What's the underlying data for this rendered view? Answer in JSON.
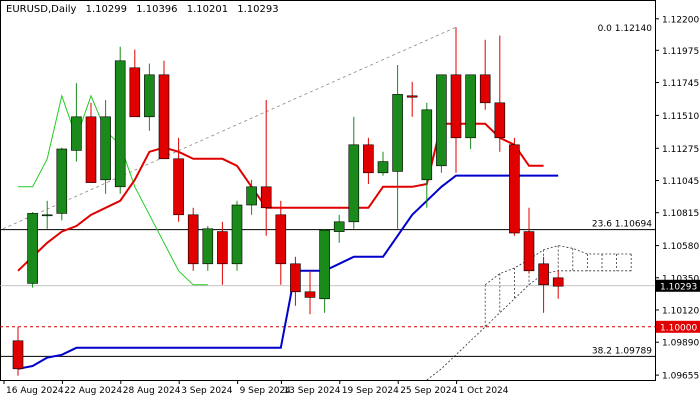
{
  "header": {
    "symbol_timeframe": "EURUSD,Daily",
    "open": "1.10299",
    "high": "1.10396",
    "low": "1.10201",
    "close": "1.10293"
  },
  "colors": {
    "bull": "#1a8a1a",
    "bear": "#e00000",
    "red_line": "#e00000",
    "blue_line": "#0000cc",
    "green_line": "#22cc22",
    "grid": "#d8d8d8",
    "level_line": "#000000",
    "dashed_level": "#cc0000",
    "cloud": "#333333",
    "current_price_bg": "#000000",
    "key_level_bg": "#e00000"
  },
  "chart_data": {
    "type": "candlestick",
    "symbol": "EURUSD",
    "timeframe": "Daily",
    "ylim": [
      1.0962,
      1.1222
    ],
    "y_ticks": [
      "1.12200",
      "1.11975",
      "1.11745",
      "1.11510",
      "1.11275",
      "1.11045",
      "1.10815",
      "1.10580",
      "1.10350",
      "1.10120",
      "1.09890",
      "1.09655"
    ],
    "x_labels": [
      "16 Aug 2024",
      "22 Aug 2024",
      "28 Aug 2024",
      "3 Sep 2024",
      "9 Sep 2024",
      "13 Sep 2024",
      "19 Sep 2024",
      "25 Sep 2024",
      "1 Oct 2024"
    ],
    "candles": [
      {
        "o": 1.099,
        "h": 1.1,
        "l": 1.0965,
        "c": 1.097
      },
      {
        "o": 1.1031,
        "h": 1.1082,
        "l": 1.1028,
        "c": 1.1081
      },
      {
        "o": 1.108,
        "h": 1.109,
        "l": 1.107,
        "c": 1.108
      },
      {
        "o": 1.1081,
        "h": 1.1128,
        "l": 1.1076,
        "c": 1.1127
      },
      {
        "o": 1.1126,
        "h": 1.1174,
        "l": 1.1118,
        "c": 1.115
      },
      {
        "o": 1.115,
        "h": 1.116,
        "l": 1.1105,
        "c": 1.1103
      },
      {
        "o": 1.1105,
        "h": 1.1162,
        "l": 1.1095,
        "c": 1.115
      },
      {
        "o": 1.11,
        "h": 1.12,
        "l": 1.1095,
        "c": 1.119
      },
      {
        "o": 1.1185,
        "h": 1.1198,
        "l": 1.115,
        "c": 1.115
      },
      {
        "o": 1.115,
        "h": 1.1188,
        "l": 1.114,
        "c": 1.118
      },
      {
        "o": 1.118,
        "h": 1.119,
        "l": 1.112,
        "c": 1.112
      },
      {
        "o": 1.112,
        "h": 1.1135,
        "l": 1.1075,
        "c": 1.108
      },
      {
        "o": 1.108,
        "h": 1.1085,
        "l": 1.104,
        "c": 1.1045
      },
      {
        "o": 1.1045,
        "h": 1.1072,
        "l": 1.104,
        "c": 1.107
      },
      {
        "o": 1.1068,
        "h": 1.1075,
        "l": 1.103,
        "c": 1.1045
      },
      {
        "o": 1.1045,
        "h": 1.109,
        "l": 1.104,
        "c": 1.1087
      },
      {
        "o": 1.1087,
        "h": 1.1105,
        "l": 1.108,
        "c": 1.11
      },
      {
        "o": 1.11,
        "h": 1.1162,
        "l": 1.1065,
        "c": 1.1085
      },
      {
        "o": 1.108,
        "h": 1.109,
        "l": 1.103,
        "c": 1.1045
      },
      {
        "o": 1.1045,
        "h": 1.105,
        "l": 1.1015,
        "c": 1.1025
      },
      {
        "o": 1.1025,
        "h": 1.104,
        "l": 1.1009,
        "c": 1.1021
      },
      {
        "o": 1.102,
        "h": 1.107,
        "l": 1.101,
        "c": 1.1069
      },
      {
        "o": 1.1068,
        "h": 1.108,
        "l": 1.106,
        "c": 1.1075
      },
      {
        "o": 1.1075,
        "h": 1.115,
        "l": 1.107,
        "c": 1.113
      },
      {
        "o": 1.113,
        "h": 1.1135,
        "l": 1.1102,
        "c": 1.111
      },
      {
        "o": 1.111,
        "h": 1.1125,
        "l": 1.1108,
        "c": 1.1118
      },
      {
        "o": 1.1111,
        "h": 1.1187,
        "l": 1.107,
        "c": 1.1166
      },
      {
        "o": 1.1165,
        "h": 1.1175,
        "l": 1.115,
        "c": 1.1164
      },
      {
        "o": 1.1105,
        "h": 1.116,
        "l": 1.1085,
        "c": 1.1155
      },
      {
        "o": 1.1115,
        "h": 1.118,
        "l": 1.111,
        "c": 1.118
      },
      {
        "o": 1.118,
        "h": 1.1214,
        "l": 1.111,
        "c": 1.1135
      },
      {
        "o": 1.1135,
        "h": 1.118,
        "l": 1.1127,
        "c": 1.118
      },
      {
        "o": 1.118,
        "h": 1.1205,
        "l": 1.1155,
        "c": 1.116
      },
      {
        "o": 1.116,
        "h": 1.1208,
        "l": 1.1125,
        "c": 1.1135
      },
      {
        "o": 1.113,
        "h": 1.1135,
        "l": 1.1065,
        "c": 1.1067
      },
      {
        "o": 1.1068,
        "h": 1.1085,
        "l": 1.1038,
        "c": 1.104
      },
      {
        "o": 1.1045,
        "h": 1.105,
        "l": 1.101,
        "c": 1.103
      },
      {
        "o": 1.1035,
        "h": 1.104,
        "l": 1.102,
        "c": 1.1029
      }
    ],
    "red_line": [
      1.104,
      1.105,
      1.106,
      1.1068,
      1.1072,
      1.108,
      1.1085,
      1.109,
      1.1105,
      1.1125,
      1.1128,
      1.1125,
      1.112,
      1.112,
      1.112,
      1.1115,
      1.11,
      1.1085,
      1.1085,
      1.1085,
      1.1085,
      1.1085,
      1.1085,
      1.1085,
      1.1085,
      1.11,
      1.11,
      1.11,
      1.1102,
      1.1145,
      1.1145,
      1.1145,
      1.1145,
      1.1135,
      1.113,
      1.1115,
      1.1115
    ],
    "blue_line": [
      1.097,
      1.0972,
      1.0978,
      1.098,
      1.0985,
      1.0985,
      1.0985,
      1.0985,
      1.0985,
      1.0985,
      1.0985,
      1.0985,
      1.0985,
      1.0985,
      1.0985,
      1.0985,
      1.0985,
      1.0985,
      1.0985,
      1.104,
      1.104,
      1.104,
      1.1045,
      1.105,
      1.105,
      1.105,
      1.1065,
      1.108,
      1.109,
      1.11,
      1.1108,
      1.1108,
      1.1108,
      1.1108,
      1.1108,
      1.1108,
      1.1108,
      1.1108
    ],
    "green_line": [
      1.11,
      1.11,
      1.112,
      1.1165,
      1.1135,
      1.1165,
      1.114,
      1.113,
      1.11,
      1.108,
      1.106,
      1.104,
      1.103,
      1.103
    ],
    "cloud_upper": [
      null,
      null,
      null,
      null,
      null,
      null,
      null,
      null,
      null,
      null,
      null,
      null,
      null,
      null,
      null,
      null,
      null,
      null,
      null,
      null,
      null,
      null,
      null,
      null,
      null,
      null,
      null,
      null,
      null,
      null,
      null,
      null,
      1.103,
      1.1038,
      1.1042,
      1.1048,
      1.1055,
      1.1058,
      1.1056,
      1.1052,
      1.1052,
      1.1052,
      1.1052
    ],
    "cloud_lower": [
      null,
      null,
      null,
      null,
      null,
      null,
      null,
      null,
      null,
      null,
      null,
      null,
      null,
      null,
      null,
      null,
      null,
      null,
      null,
      null,
      null,
      null,
      null,
      null,
      null,
      null,
      null,
      null,
      1.0962,
      1.097,
      1.098,
      1.099,
      1.1,
      1.101,
      1.102,
      1.103,
      1.1038,
      1.104,
      1.104,
      1.104,
      1.104,
      1.104,
      1.104
    ],
    "trendline": {
      "from": {
        "i": 0,
        "y": 1.107
      },
      "to": {
        "i": 30,
        "y": 1.1214
      }
    },
    "levels": [
      {
        "value": 1.1214,
        "label": "0.0 1.12140",
        "style": "none"
      },
      {
        "value": 1.10694,
        "label": "23.6 1.10694",
        "style": "solid"
      },
      {
        "value": 1.09789,
        "label": "38.2 1.09789",
        "style": "solid"
      },
      {
        "value": 1.1,
        "label": "1.10000",
        "style": "dashed-red"
      },
      {
        "value": 1.10293,
        "label": "1.10293",
        "style": "current"
      }
    ]
  }
}
